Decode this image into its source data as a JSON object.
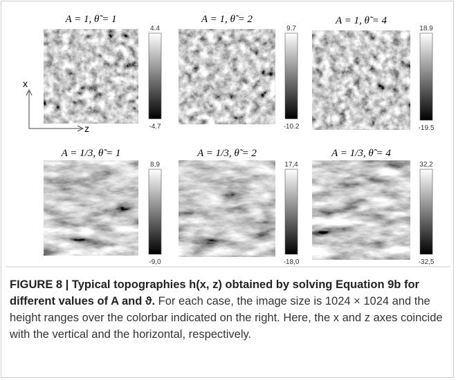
{
  "figure": {
    "panels": [
      {
        "title": "A = 1, θ̃ = 1",
        "max": "4.4",
        "min": "-4.7"
      },
      {
        "title": "A = 1, θ̃ = 2",
        "max": "9.7",
        "min": "-10.2"
      },
      {
        "title": "A = 1, θ̃ = 4",
        "max": "18.9",
        "min": "-19.5"
      },
      {
        "title": "A = 1/3, θ̃ = 1",
        "max": "8,9",
        "min": "-9,0"
      },
      {
        "title": "A = 1/3, θ̃ = 2",
        "max": "17,4",
        "min": "-18,0"
      },
      {
        "title": "A = 1/3, θ̃ = 4",
        "max": "32,2",
        "min": "-32,5"
      }
    ],
    "axis_labels": {
      "vertical": "x",
      "horizontal": "z"
    }
  },
  "caption": {
    "bold": "FIGURE 8 | Typical topographies h(x, z) obtained by solving Equation 9b for different values of A and ϑ.",
    "text": "For each case, the image size is 1024 × 1024 and the height ranges over the colorbar indicated on the right. Here, the x and z axes coincide with the vertical and the horizontal, respectively."
  }
}
